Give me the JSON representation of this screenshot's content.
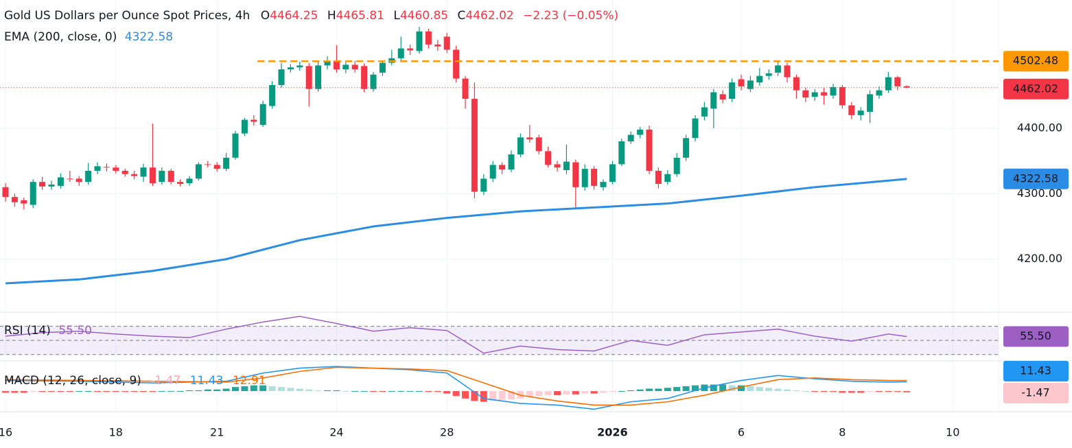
{
  "chart_data": {
    "type": "candlestick",
    "title": "Gold US Dollars per Ounce Spot Prices, 4h",
    "ohlc_labels": [
      "O",
      "H",
      "L",
      "C"
    ],
    "change_label": "−2.23 (−0.05%)",
    "categories": [
      "16",
      null,
      null,
      null,
      null,
      null,
      null,
      null,
      null,
      null,
      null,
      null,
      "18",
      null,
      null,
      null,
      null,
      null,
      null,
      null,
      null,
      null,
      null,
      "21",
      null,
      null,
      null,
      null,
      null,
      null,
      null,
      null,
      null,
      null,
      null,
      null,
      "24",
      null,
      null,
      null,
      null,
      null,
      null,
      null,
      null,
      null,
      null,
      null,
      "28",
      null,
      null,
      null,
      null,
      null,
      null,
      null,
      null,
      null,
      null,
      null,
      null,
      null,
      null,
      null,
      null,
      null,
      "2026",
      null,
      null,
      null,
      null,
      null,
      null,
      null,
      null,
      null,
      null,
      null,
      null,
      null,
      "6",
      null,
      null,
      null,
      null,
      null,
      null,
      null,
      null,
      null,
      null,
      "8",
      null,
      null,
      null,
      null,
      null,
      null,
      null,
      null,
      null,
      null,
      null,
      "10"
    ],
    "open": [
      4310,
      4295,
      4290,
      4283,
      4318,
      4311,
      4312,
      4323,
      4323,
      4318,
      4335,
      4341,
      4340,
      4335,
      4330,
      4326,
      4340,
      4318,
      4335,
      4318,
      4316,
      4323,
      4345,
      4344,
      4338,
      4355,
      4392,
      4413,
      4405,
      4434,
      4466,
      4490,
      4493,
      4495,
      4460,
      4496,
      4503,
      4490,
      4497,
      4495,
      4460,
      4485,
      4500,
      4507,
      4522,
      4518,
      4548,
      4528,
      4540,
      4520,
      4476,
      4445,
      4303,
      4323,
      4344,
      4337,
      4360,
      4386,
      4386,
      4365,
      4345,
      4336,
      4348,
      4310,
      4338,
      4310,
      4318,
      4345,
      4380,
      4390,
      4398,
      4335,
      4318,
      4330,
      4355,
      4385,
      4418,
      4430,
      4452,
      4445,
      4475,
      4460,
      4470,
      4480,
      4485,
      4496,
      4478,
      4458,
      4448,
      4455,
      4450,
      4463,
      4435,
      4420,
      4425,
      4450,
      4458,
      4478,
      4464.25,
      null,
      null,
      null,
      null,
      null
    ],
    "high": [
      4316,
      4300,
      4294,
      4322,
      4326,
      4320,
      4331,
      4335,
      4327,
      4347,
      4348,
      4346,
      4344,
      4338,
      4335,
      4346,
      4407,
      4340,
      4338,
      4322,
      4327,
      4348,
      4350,
      4348,
      4362,
      4396,
      4416,
      4420,
      4442,
      4472,
      4500,
      4498,
      4502,
      4500,
      4502,
      4510,
      4527,
      4503,
      4503,
      4499,
      4486,
      4504,
      4520,
      4540,
      4528,
      4555,
      4552,
      4535,
      4546,
      4526,
      4480,
      4470,
      4330,
      4350,
      4348,
      4366,
      4392,
      4405,
      4390,
      4372,
      4350,
      4375,
      4352,
      4345,
      4342,
      4322,
      4350,
      4384,
      4395,
      4402,
      4404,
      4340,
      4336,
      4362,
      4390,
      4420,
      4440,
      4460,
      4458,
      4476,
      4482,
      4480,
      4492,
      4490,
      4502,
      4500,
      4482,
      4462,
      4460,
      4462,
      4468,
      4466,
      4440,
      4432,
      4458,
      4464,
      4486,
      4480,
      4465.81,
      null,
      null,
      null,
      null,
      null
    ],
    "low": [
      4288,
      4280,
      4276,
      4278,
      4306,
      4306,
      4308,
      4318,
      4312,
      4314,
      4330,
      4334,
      4331,
      4326,
      4322,
      4318,
      4312,
      4314,
      4314,
      4311,
      4312,
      4320,
      4340,
      4334,
      4335,
      4352,
      4388,
      4404,
      4402,
      4430,
      4462,
      4485,
      4488,
      4433,
      4456,
      4490,
      4485,
      4484,
      4485,
      4455,
      4456,
      4480,
      4496,
      4503,
      4512,
      4514,
      4522,
      4518,
      4515,
      4470,
      4430,
      4293,
      4298,
      4318,
      4330,
      4333,
      4356,
      4378,
      4360,
      4340,
      4334,
      4330,
      4277,
      4305,
      4306,
      4305,
      4314,
      4342,
      4376,
      4385,
      4330,
      4308,
      4314,
      4326,
      4350,
      4380,
      4412,
      4400,
      4438,
      4440,
      4458,
      4455,
      4465,
      4474,
      4480,
      4470,
      4445,
      4440,
      4442,
      4436,
      4445,
      4430,
      4414,
      4412,
      4408,
      4445,
      4454,
      4458,
      4460.85,
      null,
      null,
      null,
      null,
      null
    ],
    "close": [
      4295,
      4287,
      4285,
      4318,
      4311,
      4314,
      4325,
      4322,
      4318,
      4335,
      4342,
      4340,
      4335,
      4330,
      4327,
      4340,
      4316,
      4335,
      4318,
      4315,
      4323,
      4345,
      4344,
      4338,
      4355,
      4392,
      4413,
      4410,
      4437,
      4466,
      4490,
      4493,
      4496,
      4460,
      4496,
      4503,
      4490,
      4497,
      4490,
      4460,
      4482,
      4500,
      4507,
      4522,
      4519,
      4548,
      4528,
      4525,
      4520,
      4476,
      4445,
      4303,
      4323,
      4344,
      4337,
      4360,
      4386,
      4383,
      4365,
      4344,
      4340,
      4349,
      4310,
      4338,
      4312,
      4318,
      4345,
      4380,
      4390,
      4398,
      4335,
      4315,
      4330,
      4355,
      4385,
      4415,
      4432,
      4455,
      4444,
      4470,
      4464,
      4473,
      4480,
      4484,
      4496,
      4478,
      4458,
      4447,
      4455,
      4450,
      4463,
      4435,
      4420,
      4427,
      4452,
      4458,
      4478,
      4464,
      4462.02,
      null,
      null,
      null,
      null,
      null
    ],
    "up_color": "#089981",
    "down_color": "#f23645",
    "ylim": [
      4119,
      4596
    ],
    "yticks": [
      {
        "value": 4200,
        "label": "4200.00"
      },
      {
        "value": 4300,
        "label": "4300.00"
      },
      {
        "value": 4400,
        "label": "4400.00"
      }
    ],
    "grid": true,
    "resistance": {
      "value": 4502.48,
      "color": "#ff9800"
    },
    "ema": {
      "name": "EMA (200, close, 0)",
      "color": "#2b8ce6",
      "x": [
        0,
        8,
        16,
        24,
        32,
        40,
        48,
        56,
        64,
        72,
        80,
        88,
        96,
        98
      ],
      "values": [
        4163,
        4169,
        4182,
        4200,
        4229,
        4250,
        4263,
        4273,
        4279,
        4285,
        4297,
        4310,
        4320,
        4322.58
      ]
    },
    "rsi": {
      "name": "RSI (14)",
      "color": "#9c5fc4",
      "ylim": [
        22,
        90
      ],
      "levels": [
        70,
        50,
        30
      ],
      "x": [
        0,
        4,
        8,
        12,
        16,
        20,
        24,
        28,
        32,
        36,
        40,
        44,
        48,
        52,
        56,
        60,
        64,
        68,
        72,
        76,
        80,
        84,
        88,
        92,
        96,
        98
      ],
      "values": [
        56,
        61,
        63,
        59,
        56,
        54,
        66,
        76,
        84,
        74,
        63,
        68,
        64,
        32,
        42,
        37,
        35,
        50,
        43,
        58,
        62,
        66,
        56,
        49,
        59,
        55.5
      ],
      "last_label": "55.50"
    },
    "macd": {
      "name": "MACD (12, 26, close, 9)",
      "ylim": [
        -25,
        36
      ],
      "x": [
        0,
        8,
        16,
        24,
        28,
        32,
        36,
        40,
        44,
        48,
        52,
        56,
        60,
        64,
        68,
        72,
        76,
        80,
        84,
        88,
        92,
        96,
        98
      ],
      "series": [
        {
          "color": "#2196f3",
          "values": [
            13,
            12,
            10,
            12,
            22,
            28,
            30,
            28,
            26,
            22,
            -9,
            -15,
            -17,
            -22,
            -13,
            -9,
            4,
            13,
            19,
            15,
            12,
            11,
            11.43
          ]
        },
        {
          "color": "#ff6d00",
          "values": [
            14,
            13,
            12,
            11,
            16,
            24,
            29,
            28,
            27,
            25,
            10,
            -5,
            -12,
            -17,
            -17,
            -13,
            -5,
            5,
            14,
            16,
            14,
            13,
            12.91
          ]
        }
      ],
      "histogram": [
        -2,
        -2,
        -2,
        -1,
        -1,
        -1,
        -1,
        -1,
        0,
        0,
        -1,
        -1,
        -1,
        -1,
        -1,
        -1,
        -1,
        0,
        0,
        0,
        1,
        1,
        2,
        2,
        3,
        5,
        6,
        7,
        7,
        6,
        5,
        4,
        3,
        2,
        1,
        1,
        1,
        0,
        0,
        0,
        -1,
        -1,
        0,
        0,
        0,
        0,
        -1,
        -1,
        -3,
        -6,
        -9,
        -12,
        -13,
        -12,
        -11,
        -10,
        -9,
        -7,
        -6,
        -5,
        -5,
        -4,
        -4,
        -3,
        -3,
        -2,
        -1,
        0,
        1,
        2,
        3,
        3,
        4,
        5,
        6,
        7,
        8,
        8,
        8,
        7,
        7,
        6,
        5,
        4,
        3,
        2,
        1,
        0,
        -1,
        -1,
        -1,
        -2,
        -2,
        -2,
        -1,
        -1,
        -1,
        -1,
        -1.47
      ]
    }
  }
}
